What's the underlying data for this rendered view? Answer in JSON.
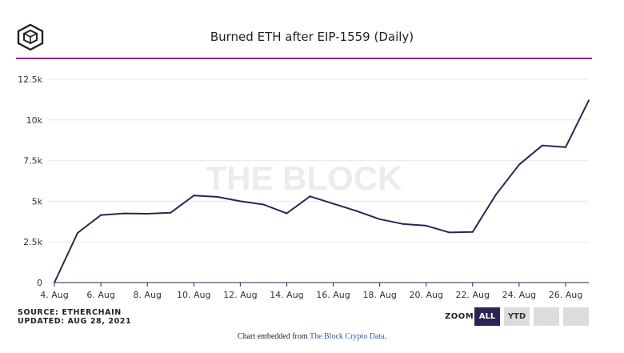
{
  "header": {
    "title": "Burned ETH after EIP-1559 (Daily)"
  },
  "watermark": "THE BLOCK",
  "source": {
    "line1": "SOURCE: ETHERCHAIN",
    "line2": "UPDATED: AUG 28, 2021"
  },
  "zoom": {
    "label": "ZOOM",
    "buttons": [
      "ALL",
      "YTD",
      "",
      ""
    ],
    "active": "ALL"
  },
  "footer": {
    "prefix": "Chart embedded from ",
    "link_text": "The Block Crypto Data",
    "suffix": "."
  },
  "colors": {
    "line": "#2a2557",
    "rule": "#8e2a80",
    "active_button": "#2a2557",
    "link": "#3a57b8"
  },
  "chart_data": {
    "type": "line",
    "title": "Burned ETH after EIP-1559 (Daily)",
    "xlabel": "",
    "ylabel": "",
    "x": [
      "4. Aug",
      "5. Aug",
      "6. Aug",
      "7. Aug",
      "8. Aug",
      "9. Aug",
      "10. Aug",
      "11. Aug",
      "12. Aug",
      "13. Aug",
      "14. Aug",
      "15. Aug",
      "16. Aug",
      "17. Aug",
      "18. Aug",
      "19. Aug",
      "20. Aug",
      "21. Aug",
      "22. Aug",
      "23. Aug",
      "24. Aug",
      "25. Aug",
      "26. Aug",
      "27. Aug"
    ],
    "x_tick_labels": [
      "4. Aug",
      "6. Aug",
      "8. Aug",
      "10. Aug",
      "12. Aug",
      "14. Aug",
      "16. Aug",
      "18. Aug",
      "20. Aug",
      "22. Aug",
      "24. Aug",
      "26. Aug"
    ],
    "series": [
      {
        "values": [
          0,
          3050,
          4150,
          4250,
          4230,
          4290,
          5350,
          5270,
          5000,
          4800,
          4250,
          5300,
          4850,
          4400,
          3900,
          3600,
          3500,
          3080,
          3110,
          5400,
          7250,
          8430,
          8320,
          11200
        ]
      }
    ],
    "y_tick_labels": [
      "0",
      "2.5k",
      "5k",
      "7.5k",
      "10k",
      "12.5k"
    ],
    "y_ticks": [
      0,
      2500,
      5000,
      7500,
      10000,
      12500
    ],
    "ylim": [
      0,
      12500
    ],
    "grid": true,
    "legend": "none"
  }
}
